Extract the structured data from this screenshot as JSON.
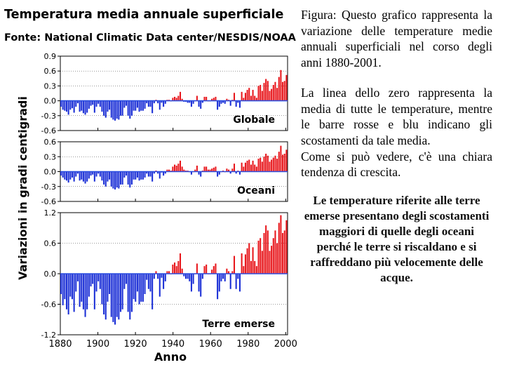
{
  "chart_data": {
    "type": "bar",
    "title": "Temperatura media annuale superficiale",
    "source": "Fonte: National Climatic Data center/NESDIS/NOAA",
    "ylabel": "Variazioni in gradi centigradi",
    "xlabel": "Anno",
    "x_range": [
      1880,
      2001
    ],
    "x_ticks": [
      "1880",
      "1900",
      "1920",
      "1940",
      "1960",
      "1980",
      "2000"
    ],
    "colors": {
      "positive": "#e8171c",
      "negative": "#1b2fd6",
      "baseline": "#2a4de0",
      "grid": "#000000"
    },
    "panels": [
      {
        "name": "Globale",
        "ylim": [
          -0.6,
          0.9
        ],
        "y_ticks": [
          {
            "v": 0.9,
            "label": "0.9"
          },
          {
            "v": 0.6,
            "label": "0.6"
          },
          {
            "v": 0.3,
            "label": "0.3"
          },
          {
            "v": 0.0,
            "label": "0.0"
          },
          {
            "v": -0.3,
            "label": "-0.3"
          },
          {
            "v": -0.6,
            "label": "-0.6"
          }
        ],
        "values": [
          -0.12,
          -0.18,
          -0.2,
          -0.22,
          -0.28,
          -0.18,
          -0.15,
          -0.24,
          -0.12,
          -0.05,
          -0.22,
          -0.2,
          -0.25,
          -0.28,
          -0.24,
          -0.16,
          -0.1,
          -0.08,
          -0.24,
          -0.12,
          -0.06,
          -0.12,
          -0.22,
          -0.3,
          -0.34,
          -0.22,
          -0.18,
          -0.34,
          -0.38,
          -0.4,
          -0.36,
          -0.38,
          -0.3,
          -0.3,
          -0.14,
          -0.1,
          -0.3,
          -0.36,
          -0.3,
          -0.2,
          -0.2,
          -0.14,
          -0.22,
          -0.2,
          -0.2,
          -0.16,
          -0.05,
          -0.12,
          -0.12,
          -0.25,
          -0.05,
          0.02,
          -0.05,
          -0.18,
          -0.04,
          -0.12,
          -0.06,
          0.02,
          0.02,
          0.0,
          0.06,
          0.08,
          0.06,
          0.1,
          0.18,
          0.04,
          -0.02,
          -0.02,
          -0.04,
          -0.04,
          -0.12,
          -0.06,
          0.0,
          0.1,
          -0.12,
          -0.16,
          -0.04,
          0.08,
          0.08,
          0.0,
          0.0,
          0.04,
          0.06,
          0.08,
          -0.18,
          -0.12,
          -0.06,
          -0.04,
          -0.06,
          0.04,
          0.02,
          -0.1,
          0.02,
          0.16,
          -0.12,
          -0.04,
          -0.14,
          0.18,
          0.06,
          0.16,
          0.22,
          0.26,
          0.1,
          0.22,
          0.1,
          0.06,
          0.3,
          0.32,
          0.2,
          0.36,
          0.44,
          0.4,
          0.2,
          0.24,
          0.32,
          0.38,
          0.26,
          0.48,
          0.62,
          0.38,
          0.4,
          0.52
        ]
      },
      {
        "name": "Oceani",
        "ylim": [
          -0.6,
          0.6
        ],
        "y_ticks": [
          {
            "v": 0.6,
            "label": "0.6"
          },
          {
            "v": 0.3,
            "label": "0.3"
          },
          {
            "v": 0.0,
            "label": "0.0"
          },
          {
            "v": -0.3,
            "label": "-0.3"
          },
          {
            "v": -0.6,
            "label": "-0.6"
          }
        ],
        "values": [
          -0.08,
          -0.12,
          -0.16,
          -0.18,
          -0.22,
          -0.16,
          -0.12,
          -0.2,
          -0.1,
          -0.04,
          -0.18,
          -0.16,
          -0.2,
          -0.24,
          -0.2,
          -0.14,
          -0.08,
          -0.06,
          -0.2,
          -0.1,
          -0.04,
          -0.1,
          -0.18,
          -0.26,
          -0.3,
          -0.2,
          -0.16,
          -0.3,
          -0.34,
          -0.36,
          -0.32,
          -0.34,
          -0.26,
          -0.26,
          -0.12,
          -0.08,
          -0.26,
          -0.32,
          -0.26,
          -0.16,
          -0.16,
          -0.12,
          -0.18,
          -0.16,
          -0.16,
          -0.12,
          -0.04,
          -0.1,
          -0.1,
          -0.2,
          -0.04,
          0.02,
          -0.04,
          -0.14,
          -0.02,
          -0.08,
          -0.04,
          0.04,
          0.04,
          0.02,
          0.1,
          0.14,
          0.12,
          0.16,
          0.22,
          0.1,
          0.04,
          0.02,
          0.02,
          0.0,
          -0.06,
          0.0,
          0.04,
          0.12,
          -0.06,
          -0.1,
          0.02,
          0.1,
          0.1,
          0.04,
          0.04,
          0.06,
          0.08,
          0.1,
          -0.1,
          -0.06,
          0.0,
          0.02,
          0.0,
          0.06,
          0.04,
          -0.04,
          0.06,
          0.16,
          -0.04,
          0.02,
          -0.06,
          0.18,
          0.1,
          0.18,
          0.22,
          0.24,
          0.14,
          0.22,
          0.14,
          0.1,
          0.26,
          0.28,
          0.2,
          0.3,
          0.36,
          0.32,
          0.2,
          0.24,
          0.28,
          0.32,
          0.26,
          0.4,
          0.52,
          0.34,
          0.36,
          0.44
        ]
      },
      {
        "name": "Terre emerse",
        "ylim": [
          -1.2,
          1.2
        ],
        "y_ticks": [
          {
            "v": 1.2,
            "label": "1.2"
          },
          {
            "v": 0.6,
            "label": "0.6"
          },
          {
            "v": 0.0,
            "label": "0.0"
          },
          {
            "v": -0.6,
            "label": "-0.6"
          },
          {
            "v": -1.2,
            "label": "-1.2"
          }
        ],
        "values": [
          -0.4,
          -0.62,
          -0.5,
          -0.7,
          -0.8,
          -0.45,
          -0.5,
          -0.75,
          -0.35,
          -0.15,
          -0.65,
          -0.55,
          -0.7,
          -0.85,
          -0.7,
          -0.45,
          -0.25,
          -0.2,
          -0.7,
          -0.35,
          -0.15,
          -0.3,
          -0.6,
          -0.8,
          -0.9,
          -0.55,
          -0.4,
          -0.85,
          -0.95,
          -1.0,
          -0.85,
          -0.9,
          -0.75,
          -0.7,
          -0.3,
          -0.2,
          -0.75,
          -0.9,
          -0.75,
          -0.5,
          -0.55,
          -0.35,
          -0.6,
          -0.55,
          -0.55,
          -0.4,
          -0.12,
          -0.3,
          -0.35,
          -0.7,
          -0.1,
          0.05,
          -0.1,
          -0.45,
          -0.08,
          -0.3,
          -0.15,
          0.05,
          0.05,
          0.0,
          0.18,
          0.22,
          0.15,
          0.25,
          0.4,
          0.1,
          -0.05,
          -0.1,
          -0.1,
          -0.15,
          -0.35,
          -0.2,
          0.0,
          0.2,
          -0.35,
          -0.45,
          -0.1,
          0.15,
          0.18,
          0.0,
          0.0,
          0.08,
          0.15,
          0.2,
          -0.5,
          -0.35,
          -0.15,
          -0.1,
          -0.15,
          0.1,
          0.05,
          -0.3,
          0.05,
          0.35,
          -0.3,
          -0.1,
          -0.35,
          0.4,
          0.15,
          0.38,
          0.5,
          0.6,
          0.25,
          0.52,
          0.25,
          0.15,
          0.65,
          0.7,
          0.45,
          0.8,
          0.95,
          0.85,
          0.45,
          0.55,
          0.7,
          0.85,
          0.6,
          1.0,
          1.15,
          0.8,
          0.85,
          1.05
        ]
      }
    ]
  },
  "side_text": {
    "paragraph_1": "Figura: Questo grafico rappresenta la variazione delle temperature medie annuali superficiali nel corso degli anni 1880-2001.",
    "paragraph_2a": "La linea dello zero rappresenta la media di tutte le temperature, mentre le barre rosse e blu indicano gli scostamenti da tale media.",
    "paragraph_2b": "Come si può vedere, c'è una chiara tendenza di crescita.",
    "note": "Le temperature riferite alle terre emerse presentano degli scostamenti maggiori di quelle degli oceani perché le terre si riscaldano e si raffreddano più velocemente delle acque."
  }
}
